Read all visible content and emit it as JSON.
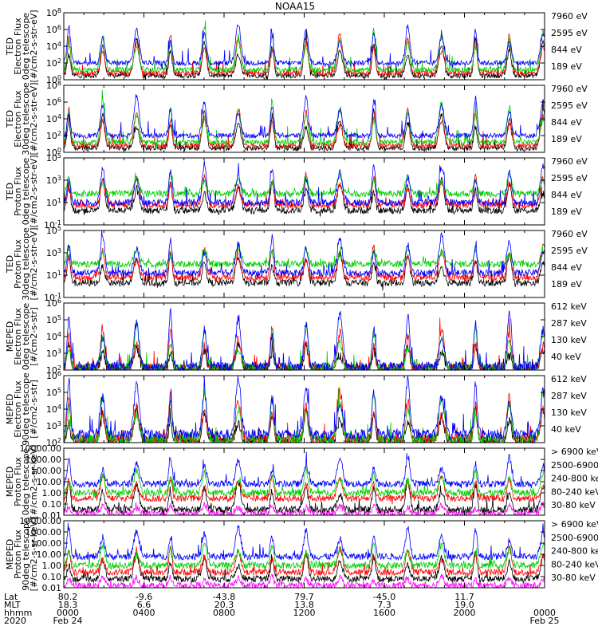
{
  "title": "NOAA15",
  "colors": {
    "blue": "#0000ff",
    "red": "#ff0000",
    "green": "#00cc00",
    "black": "#000000",
    "magenta": "#ff00ff"
  },
  "chart_data": [
    {
      "type": "line",
      "panel": "ted-electron-0deg",
      "ylabel": [
        "TED",
        "Electron Flux",
        "0deg telescope",
        "[#/cm2-s-str-eV]"
      ],
      "yticks": [
        "10^0",
        "10^2",
        "10^4",
        "10^6",
        "10^8"
      ],
      "ylim_log10": [
        0,
        8
      ],
      "series": [
        {
          "name": "7960 eV",
          "color": "black",
          "base": 0.5,
          "peak": 5.0
        },
        {
          "name": "2595 eV",
          "color": "red",
          "base": 0.8,
          "peak": 5.5
        },
        {
          "name": "844 eV",
          "color": "green",
          "base": 1.2,
          "peak": 6.0
        },
        {
          "name": "189 eV",
          "color": "blue",
          "base": 2.0,
          "peak": 6.5
        }
      ]
    },
    {
      "type": "line",
      "panel": "ted-electron-30deg",
      "ylabel": [
        "TED",
        "Electron Flux",
        "30deg telescope",
        "[#/cm2-s-str-eV]"
      ],
      "yticks": [
        "10^0",
        "10^2",
        "10^4",
        "10^6",
        "10^8"
      ],
      "ylim_log10": [
        0,
        8
      ],
      "series": [
        {
          "name": "7960 eV",
          "color": "black",
          "base": 0.5,
          "peak": 5.0
        },
        {
          "name": "2595 eV",
          "color": "red",
          "base": 0.8,
          "peak": 5.3
        },
        {
          "name": "844 eV",
          "color": "green",
          "base": 1.2,
          "peak": 6.0
        },
        {
          "name": "189 eV",
          "color": "blue",
          "base": 2.0,
          "peak": 6.6
        }
      ]
    },
    {
      "type": "line",
      "panel": "ted-proton-0deg",
      "ylabel": [
        "TED",
        "Proton Flux",
        "0deg telescope",
        "[#/cm2-s-str-eV]"
      ],
      "yticks": [
        "10^-1",
        "10^1",
        "10^3",
        "10^5"
      ],
      "ylim_log10": [
        -1,
        5
      ],
      "series": [
        {
          "name": "7960 eV",
          "color": "black",
          "base": 0.3,
          "peak": 3.0
        },
        {
          "name": "2595 eV",
          "color": "red",
          "base": 0.8,
          "peak": 3.5
        },
        {
          "name": "844 eV",
          "color": "green",
          "base": 1.8,
          "peak": 3.5
        },
        {
          "name": "189 eV",
          "color": "blue",
          "base": 1.0,
          "peak": 4.5
        }
      ]
    },
    {
      "type": "line",
      "panel": "ted-proton-30deg",
      "ylabel": [
        "TED",
        "Proton Flux",
        "30deg telescope",
        "[#/cm2-s-str-eV]"
      ],
      "yticks": [
        "10^-1",
        "10^1",
        "10^3",
        "10^5"
      ],
      "ylim_log10": [
        -1,
        5
      ],
      "series": [
        {
          "name": "7960 eV",
          "color": "black",
          "base": 0.3,
          "peak": 3.0
        },
        {
          "name": "2595 eV",
          "color": "red",
          "base": 0.8,
          "peak": 3.5
        },
        {
          "name": "844 eV",
          "color": "green",
          "base": 2.0,
          "peak": 3.5
        },
        {
          "name": "189 eV",
          "color": "blue",
          "base": 1.2,
          "peak": 4.5
        }
      ]
    },
    {
      "type": "line",
      "panel": "meped-electron-0deg",
      "ylabel": [
        "MEPED",
        "Electron Flux",
        "0deg telescope",
        "[#/cm2-s-str]"
      ],
      "yticks": [
        "10^2",
        "10^3",
        "10^4",
        "10^5",
        "10^6"
      ],
      "ylim_log10": [
        2,
        6
      ],
      "series": [
        {
          "name": "612 keV",
          "color": "black",
          "base": 2.1,
          "peak": 3.5
        },
        {
          "name": "287 keV",
          "color": "red",
          "base": 2.1,
          "peak": 4.5
        },
        {
          "name": "130 keV",
          "color": "green",
          "base": 2.1,
          "peak": 4.5
        },
        {
          "name": "40 keV",
          "color": "blue",
          "base": 2.2,
          "peak": 5.5
        }
      ]
    },
    {
      "type": "line",
      "panel": "meped-electron-90deg",
      "ylabel": [
        "MEPED",
        "Electron Flux",
        "90deg telescope",
        "[#/cm2-s-str]"
      ],
      "yticks": [
        "10^2",
        "10^3",
        "10^4",
        "10^5",
        "10^6"
      ],
      "ylim_log10": [
        2,
        6
      ],
      "series": [
        {
          "name": "612 keV",
          "color": "black",
          "base": 2.1,
          "peak": 4.0
        },
        {
          "name": "287 keV",
          "color": "red",
          "base": 2.2,
          "peak": 4.8
        },
        {
          "name": "130 keV",
          "color": "green",
          "base": 2.2,
          "peak": 5.0
        },
        {
          "name": "40 keV",
          "color": "blue",
          "base": 2.5,
          "peak": 5.8
        }
      ]
    },
    {
      "type": "line",
      "panel": "meped-proton-0deg",
      "ylabel": [
        "MEPED",
        "Proton Flux",
        "0deg telescope",
        "[#/cm2-s-sr-keV]"
      ],
      "yticks": [
        "0.01",
        "0.10",
        "1.00",
        "10.00",
        "100.00",
        "1000.00",
        "10000.00"
      ],
      "ylim_log10": [
        -2,
        4
      ],
      "series": [
        {
          "name": "> 6900 keV",
          "color": "magenta",
          "base": -1.8,
          "peak": -1.0
        },
        {
          "name": "2500-6900",
          "color": "black",
          "base": -1.5,
          "peak": 1.0
        },
        {
          "name": "240-800 ke",
          "color": "red",
          "base": -0.5,
          "peak": 1.5
        },
        {
          "name": "80-240 keV",
          "color": "green",
          "base": 0.0,
          "peak": 2.0
        },
        {
          "name": "30-80 keV",
          "color": "blue",
          "base": 0.8,
          "peak": 3.2
        }
      ]
    },
    {
      "type": "line",
      "panel": "meped-proton-90deg",
      "ylabel": [
        "MEPED",
        "Proton Flux",
        "90deg telescope",
        "[#/cm2-s-sr-keV]"
      ],
      "yticks": [
        "0.01",
        "0.10",
        "1.00",
        "10.00",
        "100.00",
        "1000.00",
        "10000.00"
      ],
      "ylim_log10": [
        -2,
        4
      ],
      "series": [
        {
          "name": "> 6900 keV",
          "color": "magenta",
          "base": -1.8,
          "peak": -1.0
        },
        {
          "name": "2500-6900",
          "color": "black",
          "base": -1.2,
          "peak": 1.0
        },
        {
          "name": "240-800 ke",
          "color": "red",
          "base": -0.6,
          "peak": 1.5
        },
        {
          "name": "80-240 keV",
          "color": "green",
          "base": 0.0,
          "peak": 2.0
        },
        {
          "name": "30-80 keV",
          "color": "blue",
          "base": 0.8,
          "peak": 3.4
        }
      ]
    }
  ],
  "xaxis": {
    "row_labels": [
      "Lat",
      "MLT",
      "hhmm",
      "2020"
    ],
    "columns": [
      [
        "80.2",
        "18.3",
        "0000",
        "Feb 24"
      ],
      [
        "-9.6",
        "6.6",
        "0400",
        ""
      ],
      [
        "-43.8",
        "20.3",
        "0800",
        ""
      ],
      [
        "79.7",
        "13.8",
        "1200",
        ""
      ],
      [
        "-45.0",
        "7.3",
        "1600",
        ""
      ],
      [
        "11.7",
        "19.0",
        "2000",
        ""
      ],
      [
        "",
        "",
        "0000",
        "Feb 25"
      ]
    ],
    "range_hours": [
      0,
      24
    ]
  }
}
